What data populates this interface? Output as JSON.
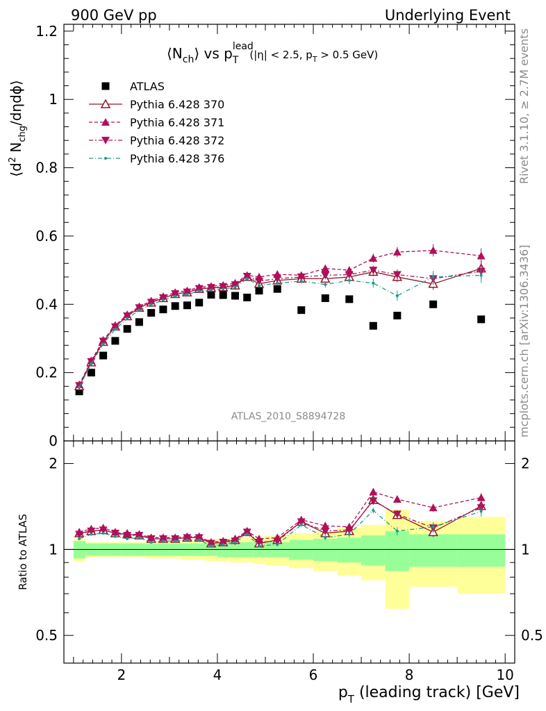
{
  "header": {
    "left": "900 GeV pp",
    "right": "Underlying Event"
  },
  "side_text": {
    "rivet": "Rivet 3.1.10, ≥ 2.7M events",
    "mcplots": "mcplots.cern.ch [arXiv:1306.3436]"
  },
  "watermark": "ATLAS_2010_S8894728",
  "colors": {
    "data": "#000000",
    "p370": "#8b1a2a",
    "p371": "#b0105a",
    "p372": "#b0105a",
    "p376": "#1a9a8a",
    "band_inner": "#98ff98",
    "band_outer": "#ffff99"
  },
  "chart_data": [
    {
      "type": "scatter",
      "title_parts": {
        "a": "⟨N",
        "b": "ch",
        "c": "⟩ vs p",
        "d": "lead",
        "e": "T",
        "f": "(|η| < 2.5, p",
        "g": "T",
        "h": " > 0.5 GeV)"
      },
      "ylabel_parts": {
        "a": "⟨d",
        "b": "2",
        "c": " N",
        "d": "chg",
        "e": "/dηdϕ⟩"
      },
      "xlim": [
        0.8,
        10.2
      ],
      "ylim": [
        0,
        1.22
      ],
      "y_ticks": [
        "1.2",
        "1",
        "0.8",
        "0.6",
        "0.4",
        "0.2",
        "0"
      ],
      "y_tick_values": [
        1.2,
        1.0,
        0.8,
        0.6,
        0.4,
        0.2,
        0
      ],
      "x": [
        1.12,
        1.37,
        1.62,
        1.87,
        2.12,
        2.37,
        2.62,
        2.87,
        3.12,
        3.37,
        3.62,
        3.87,
        4.12,
        4.37,
        4.62,
        4.87,
        5.25,
        5.75,
        6.25,
        6.75,
        7.25,
        7.75,
        8.5,
        9.5
      ],
      "series": [
        {
          "name": "ATLAS",
          "key": "data",
          "marker": "square",
          "values": [
            0.145,
            0.2,
            0.25,
            0.293,
            0.328,
            0.348,
            0.375,
            0.385,
            0.395,
            0.397,
            0.405,
            0.428,
            0.427,
            0.425,
            0.42,
            0.44,
            0.445,
            0.383,
            0.418,
            0.415,
            0.337,
            0.367,
            0.4,
            0.356
          ]
        },
        {
          "name": "Pythia 6.428 370",
          "key": "p370",
          "marker": "open-triangle-up",
          "dash": "",
          "values": [
            0.16,
            0.23,
            0.29,
            0.335,
            0.365,
            0.39,
            0.405,
            0.418,
            0.43,
            0.435,
            0.445,
            0.448,
            0.45,
            0.455,
            0.48,
            0.46,
            0.47,
            0.475,
            0.475,
            0.48,
            0.495,
            0.48,
            0.46,
            0.505
          ]
        },
        {
          "name": "Pythia 6.428 371",
          "key": "p371",
          "marker": "filled-triangle-up",
          "dash": "5,3",
          "values": [
            0.165,
            0.235,
            0.295,
            0.338,
            0.37,
            0.393,
            0.41,
            0.423,
            0.435,
            0.44,
            0.45,
            0.453,
            0.456,
            0.462,
            0.485,
            0.48,
            0.488,
            0.485,
            0.505,
            0.5,
            0.535,
            0.553,
            0.558,
            0.542
          ]
        },
        {
          "name": "Pythia 6.428 372",
          "key": "p372",
          "marker": "filled-triangle-down",
          "dash": "6,3,2,3",
          "values": [
            0.162,
            0.232,
            0.292,
            0.334,
            0.366,
            0.39,
            0.406,
            0.419,
            0.431,
            0.436,
            0.446,
            0.449,
            0.452,
            0.457,
            0.482,
            0.468,
            0.475,
            0.48,
            0.485,
            0.487,
            0.5,
            0.487,
            0.475,
            0.497
          ]
        },
        {
          "name": "Pythia 6.428 376",
          "key": "p376",
          "marker": "dot",
          "dash": "6,3,1,3",
          "values": [
            0.158,
            0.226,
            0.284,
            0.327,
            0.358,
            0.383,
            0.399,
            0.412,
            0.424,
            0.429,
            0.439,
            0.442,
            0.445,
            0.45,
            0.475,
            0.455,
            0.462,
            0.468,
            0.458,
            0.47,
            0.462,
            0.425,
            0.48,
            0.485
          ]
        }
      ]
    },
    {
      "type": "scatter",
      "ylabel": "Ratio to ATLAS",
      "xlabel_parts": {
        "a": "p",
        "b": "T",
        "c": " (leading track) [GeV]"
      },
      "ylim": [
        0.4,
        2.4
      ],
      "y_ticks": [
        "2",
        "1",
        "0.5"
      ],
      "y_tick_values": [
        2,
        1,
        0.5
      ],
      "x_ticks": [
        "2",
        "4",
        "6",
        "8",
        "10"
      ],
      "x_tick_values": [
        2,
        4,
        6,
        8,
        10
      ],
      "band_edges": [
        1.0,
        1.25,
        1.5,
        1.75,
        2.0,
        2.25,
        2.5,
        2.75,
        3.0,
        3.25,
        3.5,
        3.75,
        4.0,
        4.25,
        4.5,
        4.75,
        5.0,
        5.5,
        6.0,
        6.5,
        7.0,
        7.5,
        8.0,
        9.0,
        10.0
      ],
      "band_inner": [
        0.07,
        0.05,
        0.05,
        0.05,
        0.05,
        0.05,
        0.05,
        0.05,
        0.05,
        0.05,
        0.05,
        0.05,
        0.06,
        0.06,
        0.06,
        0.06,
        0.06,
        0.08,
        0.09,
        0.1,
        0.12,
        0.16,
        0.13,
        0.13
      ],
      "band_outer": [
        0.09,
        0.06,
        0.06,
        0.06,
        0.06,
        0.06,
        0.07,
        0.07,
        0.07,
        0.08,
        0.08,
        0.09,
        0.09,
        0.1,
        0.1,
        0.11,
        0.12,
        0.14,
        0.16,
        0.19,
        0.22,
        0.38,
        0.26,
        0.3
      ],
      "series": [
        {
          "name": "Pythia 6.428 370",
          "key": "p370",
          "values": [
            1.14,
            1.16,
            1.17,
            1.14,
            1.13,
            1.12,
            1.09,
            1.09,
            1.09,
            1.1,
            1.1,
            1.05,
            1.06,
            1.08,
            1.15,
            1.05,
            1.08,
            1.25,
            1.14,
            1.16,
            1.49,
            1.32,
            1.15,
            1.42
          ]
        },
        {
          "name": "Pythia 6.428 371",
          "key": "p371",
          "values": [
            1.15,
            1.18,
            1.19,
            1.15,
            1.13,
            1.13,
            1.1,
            1.1,
            1.1,
            1.11,
            1.11,
            1.06,
            1.07,
            1.09,
            1.16,
            1.09,
            1.1,
            1.27,
            1.21,
            1.2,
            1.59,
            1.5,
            1.4,
            1.52
          ]
        },
        {
          "name": "Pythia 6.428 372",
          "key": "p372",
          "values": [
            1.13,
            1.16,
            1.17,
            1.14,
            1.12,
            1.12,
            1.09,
            1.09,
            1.09,
            1.1,
            1.1,
            1.05,
            1.06,
            1.07,
            1.15,
            1.06,
            1.07,
            1.25,
            1.16,
            1.17,
            1.48,
            1.33,
            1.19,
            1.4
          ]
        },
        {
          "name": "Pythia 6.428 376",
          "key": "p376",
          "values": [
            1.09,
            1.13,
            1.14,
            1.11,
            1.09,
            1.1,
            1.06,
            1.07,
            1.07,
            1.08,
            1.08,
            1.03,
            1.04,
            1.06,
            1.13,
            1.03,
            1.04,
            1.22,
            1.1,
            1.13,
            1.37,
            1.16,
            1.2,
            1.36
          ]
        }
      ]
    }
  ]
}
